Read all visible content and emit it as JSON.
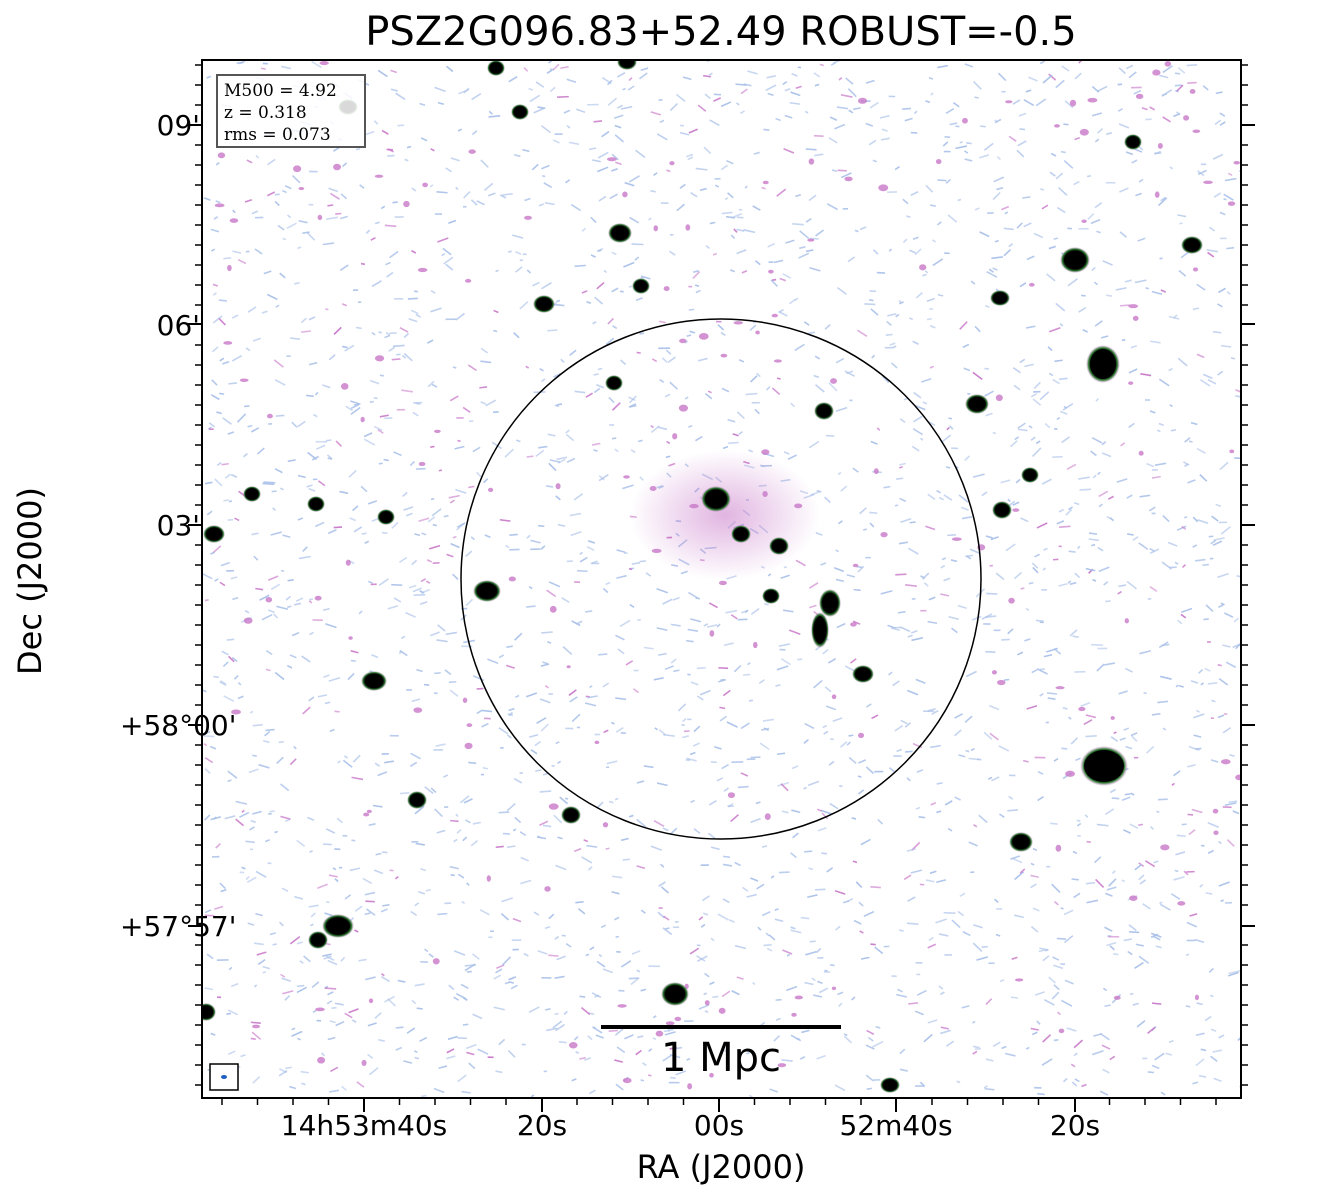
{
  "title": "PSZ2G096.83+52.49 ROBUST=-0.5",
  "axes": {
    "x_title": "RA (J2000)",
    "y_title": "Dec (J2000)",
    "x_ticks": [
      "14h53m40s",
      "20s",
      "00s",
      "52m40s",
      "20s"
    ],
    "y_ticks": [
      "09'",
      "06'",
      "03'",
      "+58°00'",
      "+57°57'"
    ]
  },
  "info": {
    "m500": "M500 = 4.92",
    "z": "z = 0.318",
    "rms": "rms = 0.073"
  },
  "scale_bar": {
    "label": "1 Mpc"
  },
  "colors": {
    "noise_blue": "#a8bfe8",
    "emission_pink": "#c878c8",
    "source_core": "#000000",
    "source_halo": "#2e7d32"
  }
}
